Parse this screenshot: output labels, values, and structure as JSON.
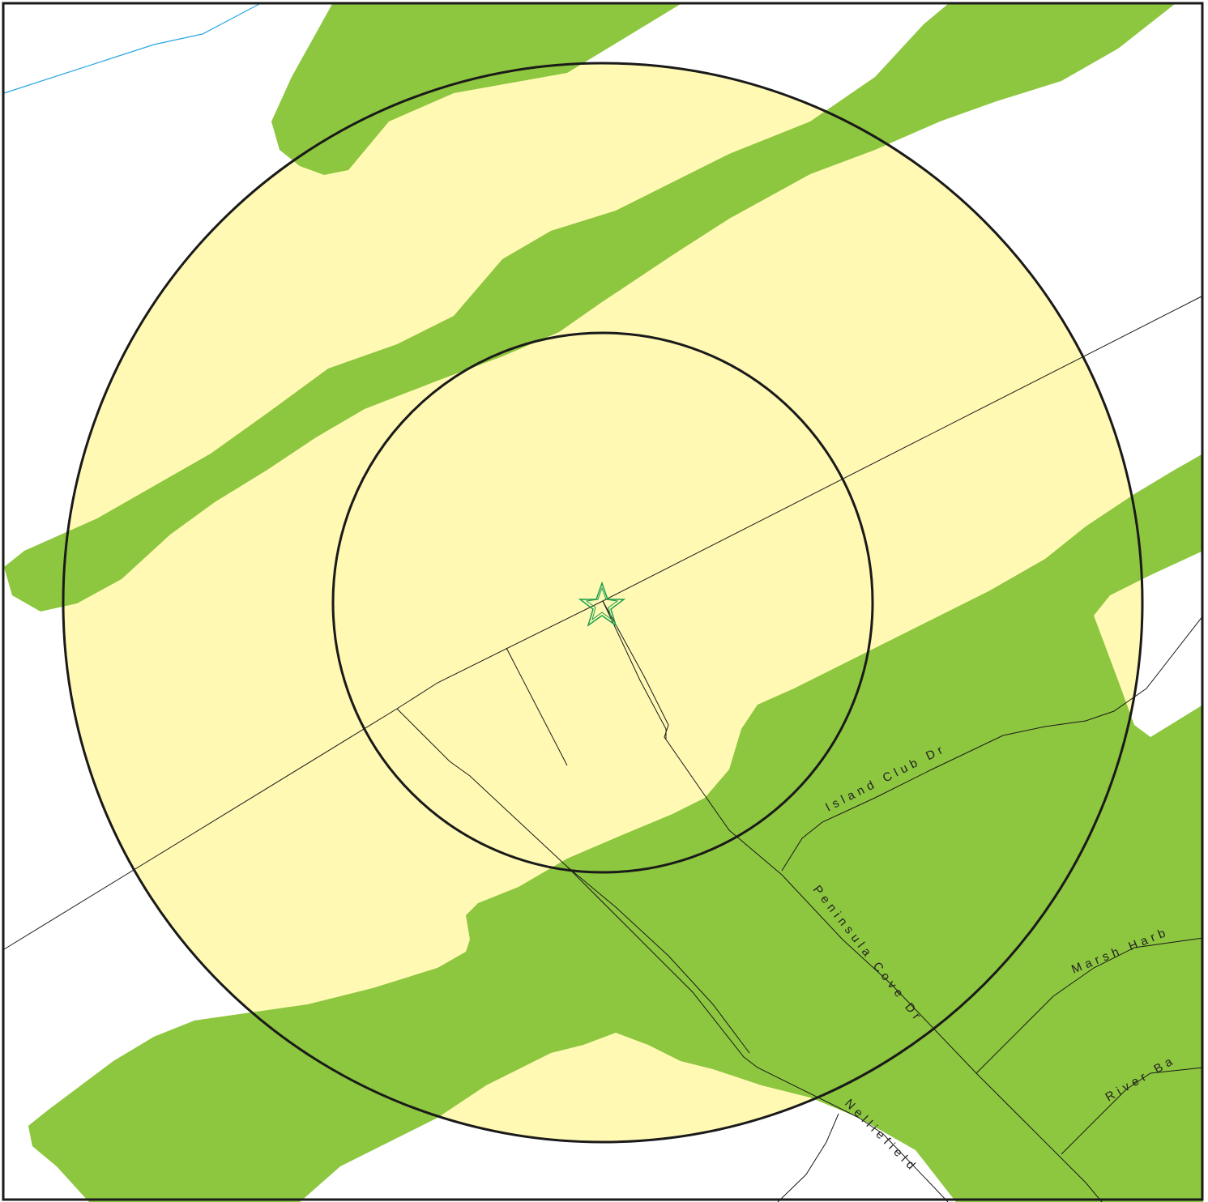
{
  "map": {
    "colors": {
      "background": "#ffffff",
      "green_zone": "#8dc63f",
      "radius_fill": "#fff9b4",
      "ring_stroke": "#1a1a1a",
      "road_stroke": "#1a1a1a",
      "water_stroke": "#29a8e0",
      "marker": "#1a9e4a",
      "frame": "#1a1a1a"
    },
    "icons": {
      "site_marker": "star-icon"
    },
    "roads": {
      "island_club": "Island Club Dr",
      "peninsula_cove": "Peninsula Cove Dr",
      "marsh_harb": "Marsh Harb",
      "river_ba": "River Ba",
      "nelliefield": "Nelliefield"
    }
  }
}
